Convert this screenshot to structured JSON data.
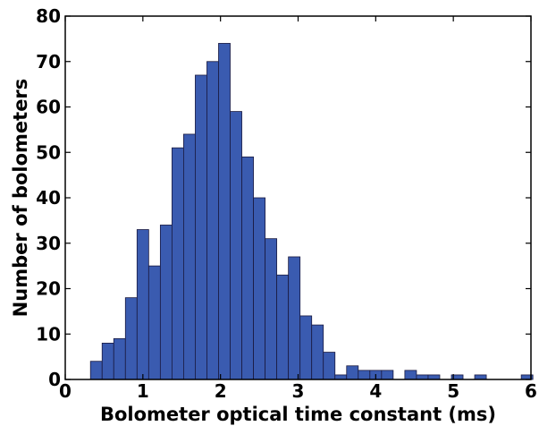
{
  "chart_data": {
    "type": "bar",
    "xlabel": "Bolometer optical time constant (ms)",
    "ylabel": "Number of bolometers",
    "xlim": [
      0,
      6
    ],
    "ylim": [
      0,
      80
    ],
    "xticks": [
      "0",
      "1",
      "2",
      "3",
      "4",
      "5",
      "6"
    ],
    "yticks": [
      "0",
      "10",
      "20",
      "30",
      "40",
      "50",
      "60",
      "70",
      "80"
    ],
    "bar_width": 0.15,
    "bars": [
      {
        "x": 0.4,
        "value": 4
      },
      {
        "x": 0.55,
        "value": 8
      },
      {
        "x": 0.7,
        "value": 9
      },
      {
        "x": 0.85,
        "value": 18
      },
      {
        "x": 1.0,
        "value": 33
      },
      {
        "x": 1.15,
        "value": 25
      },
      {
        "x": 1.3,
        "value": 34
      },
      {
        "x": 1.45,
        "value": 51
      },
      {
        "x": 1.6,
        "value": 54
      },
      {
        "x": 1.75,
        "value": 67
      },
      {
        "x": 1.9,
        "value": 70
      },
      {
        "x": 2.05,
        "value": 74
      },
      {
        "x": 2.2,
        "value": 59
      },
      {
        "x": 2.35,
        "value": 49
      },
      {
        "x": 2.5,
        "value": 40
      },
      {
        "x": 2.65,
        "value": 31
      },
      {
        "x": 2.8,
        "value": 23
      },
      {
        "x": 2.95,
        "value": 27
      },
      {
        "x": 3.1,
        "value": 14
      },
      {
        "x": 3.25,
        "value": 12
      },
      {
        "x": 3.4,
        "value": 6
      },
      {
        "x": 3.55,
        "value": 1
      },
      {
        "x": 3.7,
        "value": 3
      },
      {
        "x": 3.85,
        "value": 2
      },
      {
        "x": 4.0,
        "value": 2
      },
      {
        "x": 4.15,
        "value": 2
      },
      {
        "x": 4.3,
        "value": 0
      },
      {
        "x": 4.45,
        "value": 2
      },
      {
        "x": 4.6,
        "value": 1
      },
      {
        "x": 4.75,
        "value": 1
      },
      {
        "x": 4.9,
        "value": 0
      },
      {
        "x": 5.05,
        "value": 1
      },
      {
        "x": 5.2,
        "value": 0
      },
      {
        "x": 5.35,
        "value": 1
      },
      {
        "x": 5.5,
        "value": 0
      },
      {
        "x": 5.65,
        "value": 0
      },
      {
        "x": 5.8,
        "value": 0
      },
      {
        "x": 5.95,
        "value": 1
      }
    ],
    "bar_color": "#3a5bb0",
    "bar_edge_color": "#1a1a40",
    "grid": false,
    "legend": "none"
  }
}
